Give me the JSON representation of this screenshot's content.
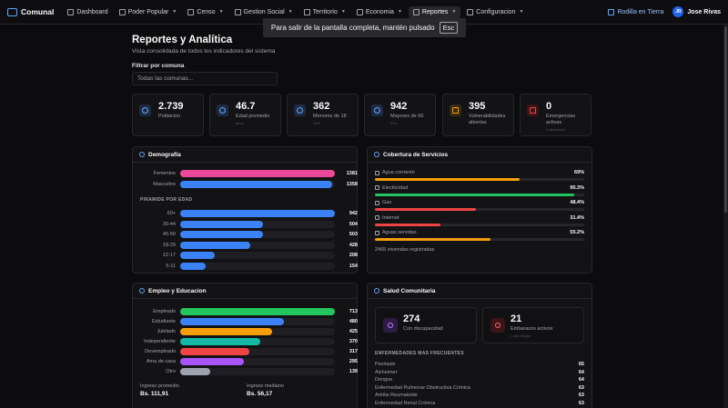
{
  "nav": {
    "brand": "Comunal",
    "items": [
      {
        "label": "Dashboard",
        "has_caret": false
      },
      {
        "label": "Poder Popular",
        "has_caret": true
      },
      {
        "label": "Censo",
        "has_caret": true
      },
      {
        "label": "Gestion Social",
        "has_caret": true
      },
      {
        "label": "Territorio",
        "has_caret": true
      },
      {
        "label": "Economia",
        "has_caret": true
      },
      {
        "label": "Reportes",
        "has_caret": true,
        "active": true
      },
      {
        "label": "Configuracion",
        "has_caret": true
      }
    ],
    "location": "Rodilla en Tierra",
    "user_initials": "JR",
    "user_name": "Jose Rivas"
  },
  "toast": {
    "text": "Para salir de la pantalla completa, mantén pulsado",
    "key": "Esc"
  },
  "header": {
    "title": "Reportes y Analítica",
    "subtitle": "Vista consolidada de todos los indicadores del sistema",
    "filter_label": "Filtrar por comuna",
    "filter_value": "Todas las comunas..."
  },
  "stats": [
    {
      "value": "2.739",
      "label": "Poblacion",
      "note": "",
      "icon": "users-icon",
      "tone": "blue"
    },
    {
      "value": "46.7",
      "label": "Edad promedio",
      "note": "años",
      "icon": "trend-icon",
      "tone": "blue"
    },
    {
      "value": "362",
      "label": "Menores de 18",
      "note": "13%",
      "icon": "users-icon",
      "tone": "blue"
    },
    {
      "value": "942",
      "label": "Mayores de 60",
      "note": "34%",
      "icon": "users-icon",
      "tone": "blue"
    },
    {
      "value": "395",
      "label": "Vulnerabilidades abiertas",
      "note": "",
      "icon": "shield-icon",
      "tone": "warn"
    },
    {
      "value": "0",
      "label": "Emergencias activas",
      "note": "0 atendidas",
      "icon": "alert-icon",
      "tone": "err"
    }
  ],
  "demografia": {
    "title": "Demografia",
    "gender": [
      {
        "label": "Femenino",
        "value": 1381,
        "color": "#ec4899"
      },
      {
        "label": "Masculino",
        "value": 1358,
        "color": "#3b82f6"
      }
    ],
    "gender_max": 1381,
    "pyramid_title": "PIRAMIDE POR EDAD",
    "pyramid": [
      {
        "label": "60+",
        "value": 942
      },
      {
        "label": "30-44",
        "value": 504
      },
      {
        "label": "45-59",
        "value": 503
      },
      {
        "label": "18-29",
        "value": 428
      },
      {
        "label": "12-17",
        "value": 208
      },
      {
        "label": "5-11",
        "value": 154
      }
    ],
    "pyramid_max": 942,
    "pyramid_color": "#3b82f6"
  },
  "servicios": {
    "title": "Cobertura de Servicios",
    "items": [
      {
        "label": "Agua corriente",
        "pct": "69%",
        "value": 69,
        "color": "#f59e0b",
        "icon": "droplet-icon"
      },
      {
        "label": "Electricidad",
        "pct": "95.3%",
        "value": 95.3,
        "color": "#22c55e",
        "icon": "bolt-icon"
      },
      {
        "label": "Gas",
        "pct": "48.4%",
        "value": 48.4,
        "color": "#ef4444",
        "icon": "flame-icon"
      },
      {
        "label": "Internet",
        "pct": "31.4%",
        "value": 31.4,
        "color": "#ef4444",
        "icon": "wifi-icon"
      },
      {
        "label": "Aguas servidas",
        "pct": "55.2%",
        "value": 55.2,
        "color": "#f59e0b",
        "icon": "pipe-icon"
      }
    ],
    "footer": "2465 viviendas registradas"
  },
  "empleo": {
    "title": "Empleo y Educacion",
    "rows": [
      {
        "label": "Empleado",
        "value": 713,
        "color": "#22c55e"
      },
      {
        "label": "Estudiante",
        "value": 480,
        "color": "#3b82f6"
      },
      {
        "label": "Jubilado",
        "value": 425,
        "color": "#f59e0b"
      },
      {
        "label": "Independiente",
        "value": 370,
        "color": "#14b8a6"
      },
      {
        "label": "Desempleado",
        "value": 317,
        "color": "#ef4444"
      },
      {
        "label": "Ama de casa",
        "value": 295,
        "color": "#a855f7"
      },
      {
        "label": "Otro",
        "value": 139,
        "color": "#9ca3af"
      }
    ],
    "max": 713,
    "income_avg_label": "Ingreso promedio",
    "income_avg": "Bs. 111,91",
    "income_med_label": "Ingreso mediano",
    "income_med": "Bs. 56,17"
  },
  "salud": {
    "title": "Salud Comunitaria",
    "cards": [
      {
        "value": "274",
        "label": "Con discapacidad",
        "note": "",
        "tone": "purple"
      },
      {
        "value": "21",
        "label": "Embarazos activos",
        "note": "1 alto riesgo",
        "tone": "red"
      }
    ],
    "diseases_title": "ENFERMEDADES MAS FRECUENTES",
    "diseases": [
      {
        "name": "Psoriasis",
        "count": "65"
      },
      {
        "name": "Alzheimer",
        "count": "64"
      },
      {
        "name": "Dengue",
        "count": "64"
      },
      {
        "name": "Enfermedad Pulmonar Obstructiva Crónica",
        "count": "63"
      },
      {
        "name": "Artritis Reumatoide",
        "count": "63"
      },
      {
        "name": "Enfermedad Renal Crónica",
        "count": "63"
      }
    ]
  }
}
